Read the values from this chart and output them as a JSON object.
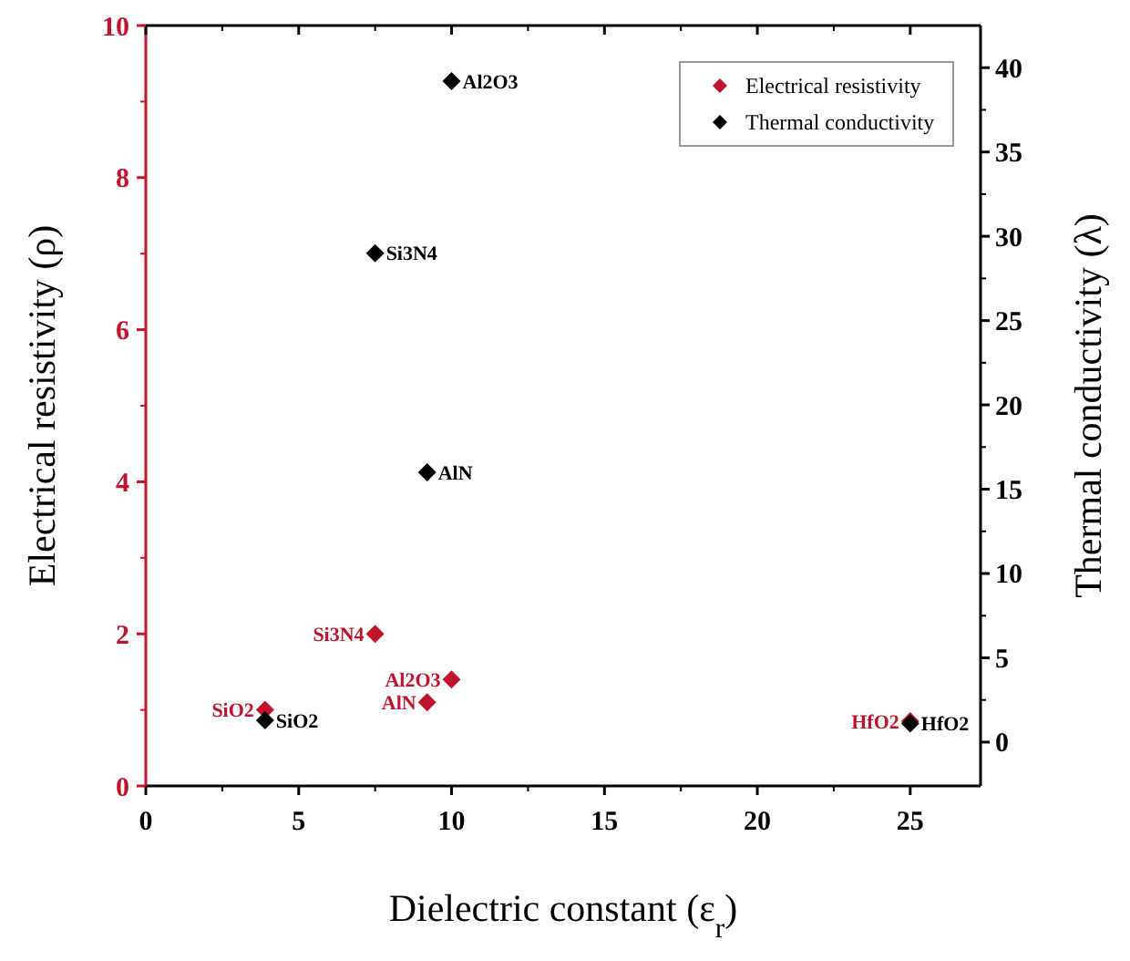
{
  "chart_data": {
    "type": "scatter",
    "xlabel": "Dielectric constant (ε$_{r}$)",
    "ylabel": "Electrical resistivity (ρ)",
    "y2label": "Thermal conductivity (λ)",
    "xlim": [
      0,
      27.3
    ],
    "xticks": [
      0,
      5,
      10,
      15,
      20,
      25
    ],
    "ylim": [
      0,
      10
    ],
    "yticks": [
      0,
      2,
      4,
      6,
      8,
      10
    ],
    "y2lim": [
      -2.6,
      42.5
    ],
    "y2ticks": [
      0,
      5,
      10,
      15,
      20,
      25,
      30,
      35,
      40
    ],
    "legend": "top right",
    "marker": "diamond",
    "series": [
      {
        "name": "Electrical resistivity",
        "color": "#c0142c",
        "x": [
          3.9,
          7.5,
          10,
          9.2,
          25
        ],
        "values": [
          1.0,
          2.0,
          1.4,
          1.1,
          0.85
        ],
        "value_labels": [
          "SiO2",
          "Si3N4",
          "Al2O3",
          "AlN",
          "HfO2"
        ]
      },
      {
        "name": "Thermal conductivity",
        "color": "#000000",
        "axis": "y2",
        "x": [
          10,
          7.5,
          9.2,
          3.9,
          25
        ],
        "values": [
          39.2,
          29.0,
          16.0,
          1.3,
          1.1
        ],
        "value_labels": [
          "Al2O3",
          "Si3N4",
          "AlN",
          "SiO2",
          "HfO2"
        ]
      }
    ]
  }
}
